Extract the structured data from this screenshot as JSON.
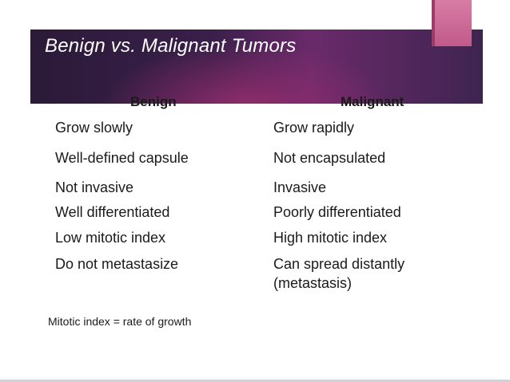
{
  "slide": {
    "title": "Benign vs. Malignant Tumors",
    "colors": {
      "band_dark": "#3a1f4a",
      "band_magenta": "#962d6e",
      "tab_pink": "#d87ca6",
      "text": "#1a1a1a"
    }
  },
  "table": {
    "headers": [
      "Benign",
      "Malignant"
    ],
    "rows": [
      {
        "benign": "Grow slowly",
        "malignant": "Grow rapidly"
      },
      {
        "benign": "Well-defined capsule",
        "malignant": "Not encapsulated"
      },
      {
        "benign": "Not invasive",
        "malignant": "Invasive"
      },
      {
        "benign": "Well differentiated",
        "malignant": "Poorly differentiated"
      },
      {
        "benign": "Low mitotic index",
        "malignant": "High mitotic index"
      },
      {
        "benign": "Do not metastasize",
        "malignant": "Can spread distantly"
      }
    ],
    "extra_line": "(metastasis)"
  },
  "footnote": "Mitotic index = rate of growth"
}
